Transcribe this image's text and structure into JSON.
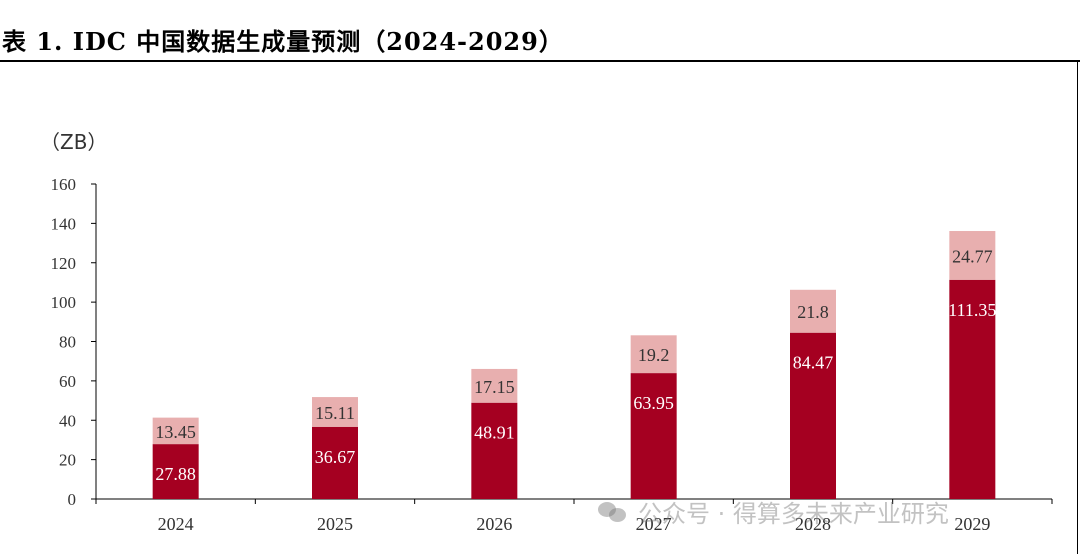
{
  "title": "表 1. IDC 中国数据生成量预测（2024-2029）",
  "watermark": "公众号 · 得算多未来产业研究",
  "chart_data": {
    "type": "bar",
    "stacked": true,
    "unit_label": "（ZB）",
    "categories": [
      "2024",
      "2025",
      "2026",
      "2027",
      "2028",
      "2029"
    ],
    "series": [
      {
        "values": [
          27.88,
          36.67,
          48.91,
          63.95,
          84.47,
          111.35
        ],
        "color": "#A50021",
        "label_color": "#ffffff"
      },
      {
        "values": [
          13.45,
          15.11,
          17.15,
          19.2,
          21.8,
          24.77
        ],
        "color": "#E8AFAF",
        "label_color": "#333333"
      }
    ],
    "y_ticks": [
      0,
      20,
      40,
      60,
      80,
      100,
      120,
      140,
      160
    ],
    "ylim": [
      0,
      160
    ],
    "grid": false,
    "legend": "none"
  }
}
